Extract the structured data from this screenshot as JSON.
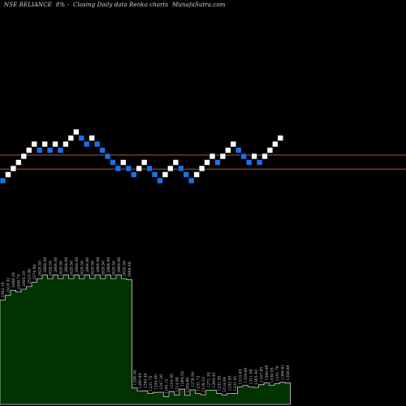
{
  "header": {
    "symbol": "NSE RELIANCE",
    "change": "8% -",
    "description": "Closing Daily data  Renko  charts",
    "source": "MunafaSutra.com"
  },
  "colors": {
    "background": "#000000",
    "up_brick": "#ffffff",
    "down_brick": "#1f6fe6",
    "brick_border": "#000000",
    "reference_line": "#b5562e",
    "volume_fill": "#003300",
    "volume_outline": "#d0d0d0",
    "label_text": "#d0d0d0"
  },
  "chart_data": [
    {
      "type": "renko",
      "description": "Closing price renko bricks (1 = up/white, -1 = down/blue)",
      "bricks": [
        {
          "dir": -1,
          "level": 0
        },
        {
          "dir": 1,
          "level": 1
        },
        {
          "dir": 1,
          "level": 2
        },
        {
          "dir": 1,
          "level": 3
        },
        {
          "dir": 1,
          "level": 4
        },
        {
          "dir": 1,
          "level": 5
        },
        {
          "dir": 1,
          "level": 6
        },
        {
          "dir": -1,
          "level": 5
        },
        {
          "dir": 1,
          "level": 6
        },
        {
          "dir": -1,
          "level": 5
        },
        {
          "dir": 1,
          "level": 6
        },
        {
          "dir": -1,
          "level": 5
        },
        {
          "dir": 1,
          "level": 6
        },
        {
          "dir": 1,
          "level": 7
        },
        {
          "dir": 1,
          "level": 8
        },
        {
          "dir": -1,
          "level": 7
        },
        {
          "dir": -1,
          "level": 6
        },
        {
          "dir": 1,
          "level": 7
        },
        {
          "dir": -1,
          "level": 6
        },
        {
          "dir": -1,
          "level": 5
        },
        {
          "dir": -1,
          "level": 4
        },
        {
          "dir": -1,
          "level": 3
        },
        {
          "dir": -1,
          "level": 2
        },
        {
          "dir": 1,
          "level": 3
        },
        {
          "dir": -1,
          "level": 2
        },
        {
          "dir": -1,
          "level": 1
        },
        {
          "dir": 1,
          "level": 2
        },
        {
          "dir": 1,
          "level": 3
        },
        {
          "dir": -1,
          "level": 2
        },
        {
          "dir": -1,
          "level": 1
        },
        {
          "dir": -1,
          "level": 0
        },
        {
          "dir": 1,
          "level": 1
        },
        {
          "dir": 1,
          "level": 2
        },
        {
          "dir": 1,
          "level": 3
        },
        {
          "dir": -1,
          "level": 2
        },
        {
          "dir": -1,
          "level": 1
        },
        {
          "dir": -1,
          "level": 0
        },
        {
          "dir": 1,
          "level": 1
        },
        {
          "dir": 1,
          "level": 2
        },
        {
          "dir": 1,
          "level": 3
        },
        {
          "dir": 1,
          "level": 4
        },
        {
          "dir": -1,
          "level": 3
        },
        {
          "dir": 1,
          "level": 4
        },
        {
          "dir": 1,
          "level": 5
        },
        {
          "dir": 1,
          "level": 6
        },
        {
          "dir": -1,
          "level": 5
        },
        {
          "dir": -1,
          "level": 4
        },
        {
          "dir": -1,
          "level": 3
        },
        {
          "dir": 1,
          "level": 4
        },
        {
          "dir": -1,
          "level": 3
        },
        {
          "dir": 1,
          "level": 4
        },
        {
          "dir": 1,
          "level": 5
        },
        {
          "dir": 1,
          "level": 6
        },
        {
          "dir": 1,
          "level": 7
        }
      ],
      "reference_lines": [
        4.2,
        1.9
      ]
    },
    {
      "type": "area",
      "description": "Brick close price profile (bottom panel)",
      "values": [
        2362.1,
        2418.32,
        2480.34,
        2458.75,
        2493.19,
        2523.94,
        2574.89,
        2620.5,
        2664.0,
        2620.5,
        2664.0,
        2620.5,
        2664.0,
        2620.5,
        2664.0,
        2620.5,
        2664.0,
        2620.5,
        2664.0,
        2620.5,
        2664.0,
        2620.5,
        2664.0,
        2620.5,
        2608.48,
        1298.4,
        1260.99,
        1264.4,
        1231.75,
        1244.8,
        1247.2,
        1195.12,
        1254.95,
        1214.8,
        1284.53,
        1209.86,
        1276.99,
        1231.72,
        1216.53,
        1271.39,
        1269.45,
        1232.95,
        1214.09,
        1232.95,
        1231.01,
        1310.85,
        1329.6,
        1311.06,
        1305.4,
        1337.85,
        1360.0,
        1330.55,
        1351.7,
        1366.61,
        1358.08
      ],
      "labels": [
        "2362.10",
        "2418.32",
        "2480.34",
        "2458.75",
        "2493.19",
        "2523.94",
        "2574.89",
        "2620.50",
        "2664.00",
        "2620.50",
        "2664.00",
        "2620.50",
        "2664.00",
        "2620.50",
        "2664.00",
        "2620.50",
        "2664.00",
        "2620.50",
        "2664.00",
        "2620.50",
        "2664.00",
        "2620.50",
        "2664.00",
        "2620.50",
        "2608.48",
        "1298.40",
        "1260.99",
        "1264.40",
        "1231.75",
        "1244.80",
        "1247.20",
        "1195.12",
        "1254.95",
        "1214.80",
        "1284.53",
        "1209.86",
        "1276.99",
        "1231.72",
        "1216.53",
        "1271.39",
        "1269.45",
        "1232.95",
        "1214.09",
        "1232.95",
        "1231.01",
        "1310.85",
        "1329.60",
        "1311.06",
        "1305.40",
        "1337.85",
        "1360.00",
        "1330.55",
        "1351.70",
        "1366.61",
        "1358.08"
      ],
      "ylim": [
        1100,
        2700
      ]
    }
  ]
}
